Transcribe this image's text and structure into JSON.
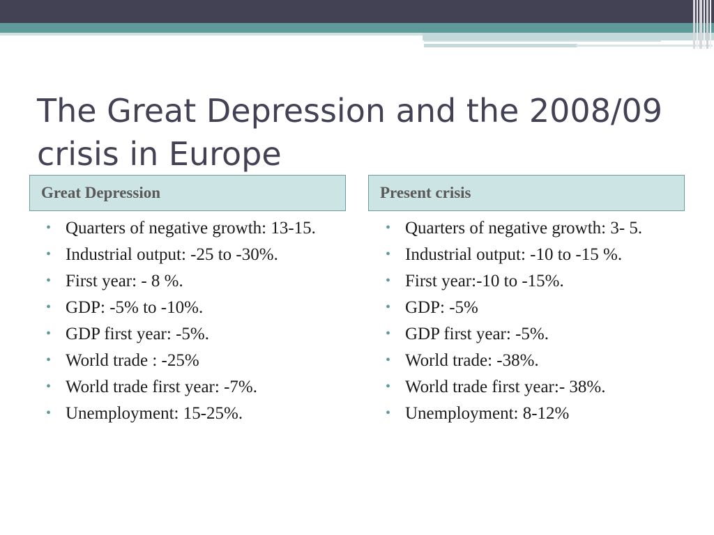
{
  "slide": {
    "title": "The Great Depression and the 2008/09 crisis in Europe",
    "bullet_glyph": "•",
    "colors": {
      "title": "#434254",
      "header_dark_band": "#434254",
      "header_teal_band": "#5f9a9b",
      "column_header_fill": "#cde4e4",
      "column_header_border": "#6c9ea0",
      "bullet": "#5f9a9b"
    }
  },
  "columns": {
    "left": {
      "header": "Great Depression",
      "items": [
        "Quarters of negative growth: 13-15.",
        "Industrial output: -25 to -30%.",
        "First year: - 8 %.",
        "GDP: -5% to -10%.",
        "GDP first year: -5%.",
        "World trade : -25%",
        "World trade first year: -7%.",
        "Unemployment: 15-25%."
      ]
    },
    "right": {
      "header": "Present crisis",
      "items": [
        "Quarters of negative growth: 3- 5.",
        "Industrial output: -10 to -15 %.",
        "First year:-10 to -15%.",
        "GDP: -5%",
        "GDP first year: -5%.",
        "World trade: -38%.",
        "World trade first year:- 38%.",
        "Unemployment: 8-12%"
      ]
    }
  }
}
